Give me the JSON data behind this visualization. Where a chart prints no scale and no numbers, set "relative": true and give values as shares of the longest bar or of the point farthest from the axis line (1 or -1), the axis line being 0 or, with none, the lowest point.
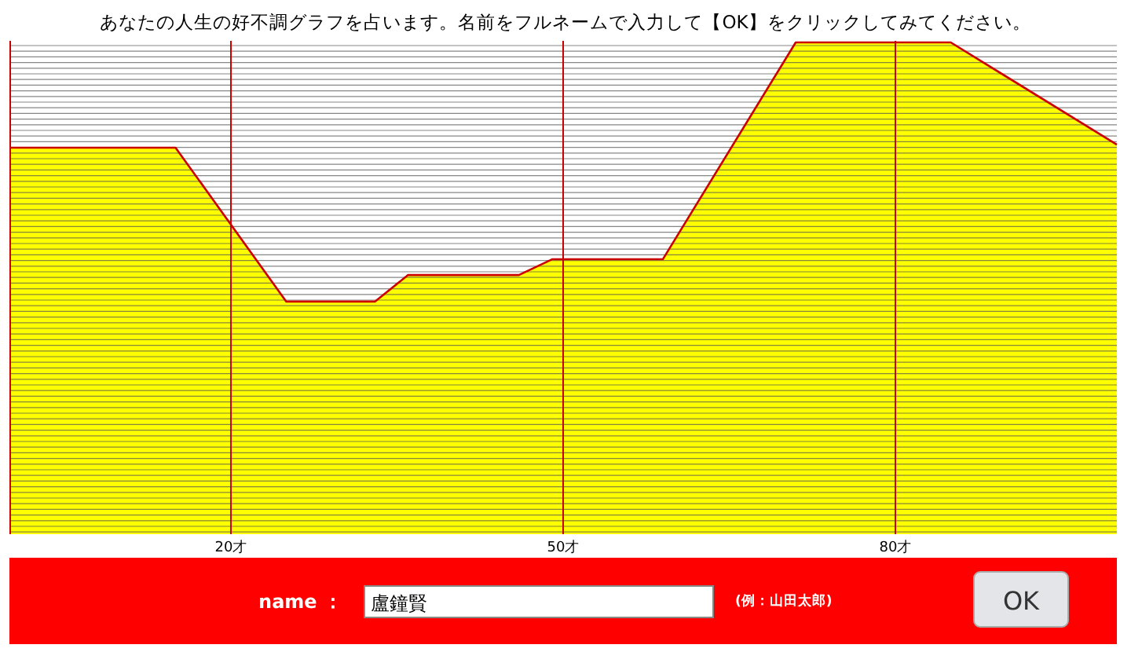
{
  "chart_data": {
    "type": "area",
    "title": "あなたの人生の好不調グラフを占います。名前をフルネームで入力して【OK】をクリックしてみてください。",
    "relative": true,
    "x": [
      0,
      15,
      25,
      33,
      36,
      46,
      49,
      59,
      71,
      85,
      100
    ],
    "series": [
      {
        "color": "#ffff00",
        "values": [
          0.786,
          0.786,
          0.473,
          0.473,
          0.527,
          0.527,
          0.559,
          0.559,
          1,
          1,
          0.792
        ]
      }
    ],
    "xlim": [
      0,
      100
    ],
    "xticks": [
      {
        "value": 20,
        "label": "20才"
      },
      {
        "value": 50,
        "label": "50才"
      },
      {
        "value": 80,
        "label": "80才"
      }
    ],
    "grid": true,
    "annotations": [
      "name ：",
      "盧鐘賢",
      "(例：山田太郎)",
      "OK"
    ]
  }
}
